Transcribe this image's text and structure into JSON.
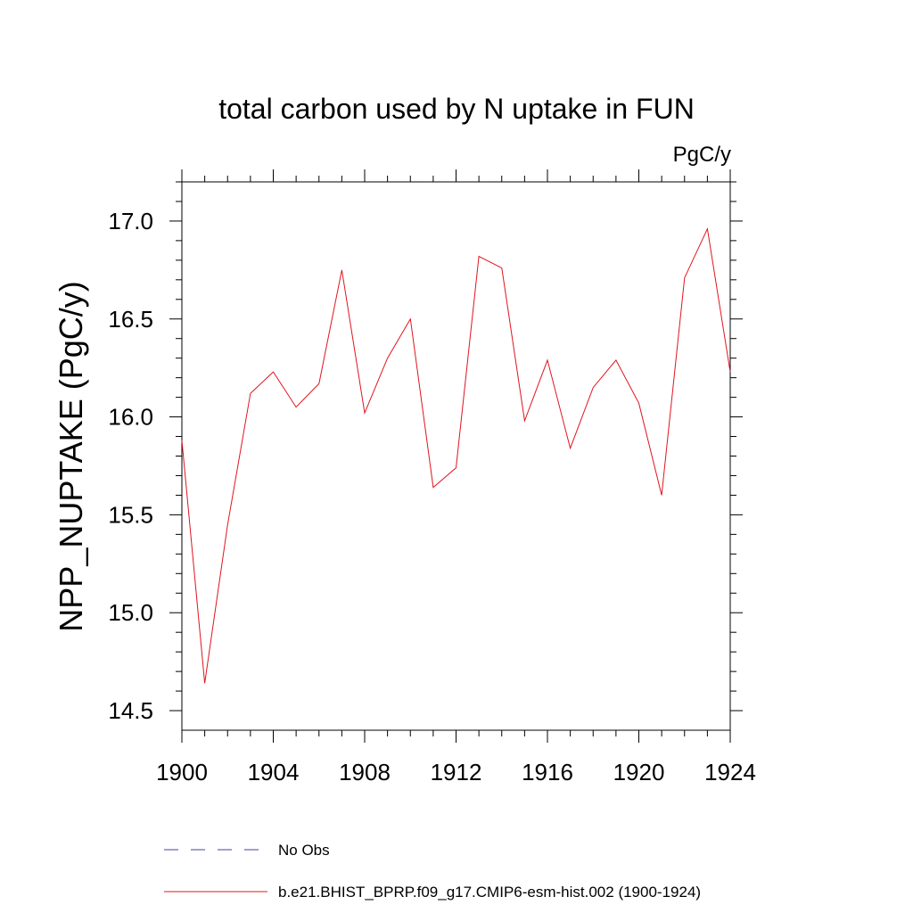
{
  "chart_data": {
    "type": "line",
    "title": "total carbon used by N uptake in FUN",
    "units": "PgC/y",
    "ylabel": "NPP_NUPTAKE  (PgC/y)",
    "xlabel": "",
    "xlim": [
      1900,
      1924
    ],
    "ylim": [
      14.4,
      17.2
    ],
    "x_ticks": [
      1900,
      1904,
      1908,
      1912,
      1916,
      1920,
      1924
    ],
    "x_tick_labels": [
      "1900",
      "1904",
      "1908",
      "1912",
      "1916",
      "1920",
      "1924"
    ],
    "y_ticks": [
      14.5,
      15.0,
      15.5,
      16.0,
      16.5,
      17.0
    ],
    "y_tick_labels": [
      "14.5",
      "15.0",
      "15.5",
      "16.0",
      "16.5",
      "17.0"
    ],
    "grid": false,
    "legend_position": "bottom",
    "series": [
      {
        "name": "b.e21.BHIST_BPRP.f09_g17.CMIP6-esm-hist.002 (1900-1924)",
        "color": "#e0141e",
        "style": "solid",
        "x": [
          1900,
          1901,
          1902,
          1903,
          1904,
          1905,
          1906,
          1907,
          1908,
          1909,
          1910,
          1911,
          1912,
          1913,
          1914,
          1915,
          1916,
          1917,
          1918,
          1919,
          1920,
          1921,
          1922,
          1923,
          1924
        ],
        "values": [
          15.88,
          14.64,
          15.45,
          16.12,
          16.23,
          16.05,
          16.17,
          16.75,
          16.02,
          16.3,
          16.5,
          15.64,
          15.74,
          16.82,
          16.76,
          15.98,
          16.29,
          15.84,
          16.15,
          16.29,
          16.07,
          15.6,
          16.71,
          16.96,
          16.23
        ]
      }
    ],
    "legend": [
      {
        "label": "No Obs",
        "color": "#4040a0",
        "style": "dashed"
      },
      {
        "label": "b.e21.BHIST_BPRP.f09_g17.CMIP6-esm-hist.002 (1900-1924)",
        "color": "#e0141e",
        "style": "solid"
      }
    ]
  }
}
